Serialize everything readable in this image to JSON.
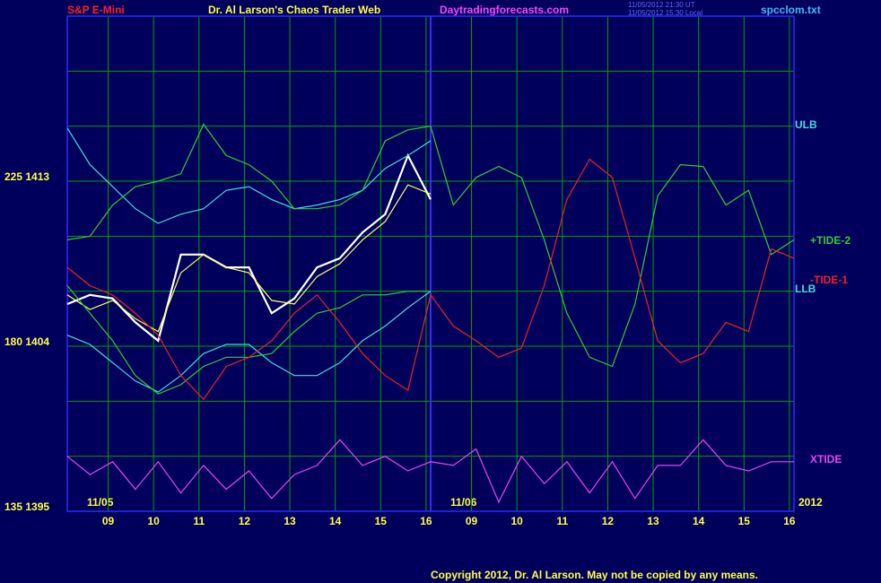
{
  "chart_data": {
    "type": "line",
    "instrument": "S&P E-Mini",
    "title": "Dr. Al Larson's Chaos Trader Web",
    "website": "Daytradingforecasts.com",
    "timestamps": [
      "11/05/2012 21:30 UT",
      "11/05/2012 15:30 Local"
    ],
    "file": "spcclom.txt",
    "dates": [
      "11/05",
      "11/06"
    ],
    "year": "2012",
    "copyright": "Copyright 2012, Dr. Al Larson. May not be copied by any means.",
    "xlim": [
      0,
      16
    ],
    "ylim": [
      1395,
      1422
    ],
    "xticks": [
      {
        "value": 0.9,
        "label": "09"
      },
      {
        "value": 1.9,
        "label": "10"
      },
      {
        "value": 2.9,
        "label": "11"
      },
      {
        "value": 3.9,
        "label": "12"
      },
      {
        "value": 4.9,
        "label": "13"
      },
      {
        "value": 5.9,
        "label": "14"
      },
      {
        "value": 6.9,
        "label": "15"
      },
      {
        "value": 7.9,
        "label": "16"
      },
      {
        "value": 8.9,
        "label": "09"
      },
      {
        "value": 9.9,
        "label": "10"
      },
      {
        "value": 10.9,
        "label": "11"
      },
      {
        "value": 11.9,
        "label": "12"
      },
      {
        "value": 12.9,
        "label": "13"
      },
      {
        "value": 13.9,
        "label": "14"
      },
      {
        "value": 14.9,
        "label": "15"
      },
      {
        "value": 15.9,
        "label": "16"
      }
    ],
    "yticks": [
      {
        "value": 1395,
        "label": "135 1395"
      },
      {
        "value": 1404,
        "label": "180 1404"
      },
      {
        "value": 1413,
        "label": "225 1413"
      }
    ],
    "ygrid": [
      1398,
      1401,
      1407,
      1410,
      1416,
      1419,
      1422
    ],
    "grid": true,
    "grid_color": "#00a000",
    "day_divider": 8,
    "x": [
      0,
      0.5,
      1,
      1.5,
      2,
      2.5,
      3,
      3.5,
      4,
      4.5,
      5,
      5.5,
      6,
      6.5,
      7,
      7.5,
      8,
      8.5,
      9,
      9.5,
      10,
      10.5,
      11,
      11.5,
      12,
      12.5,
      13,
      13.5,
      14,
      14.5,
      15,
      15.5,
      16
    ],
    "series": [
      {
        "color": "#ffffff",
        "values": [
          1406.3,
          1406.8,
          1406.6,
          1405.3,
          1404.3,
          1409.0,
          1409.0,
          1408.3,
          1408.3,
          1405.8,
          1406.6,
          1408.3,
          1408.8,
          1410.2,
          1411.2,
          1414.4,
          1412.0,
          null,
          null,
          null,
          null,
          null,
          null,
          null,
          null,
          null,
          null,
          null,
          null,
          null,
          null,
          null,
          null
        ]
      },
      {
        "color": "#ffff66",
        "values": [
          1406.8,
          1406.0,
          1406.5,
          1405.5,
          1404.8,
          1408.0,
          1409.0,
          1408.3,
          1408.0,
          1406.5,
          1406.3,
          1407.8,
          1408.5,
          1409.8,
          1410.8,
          1412.8,
          1412.3,
          null,
          null,
          null,
          null,
          null,
          null,
          null,
          null,
          null,
          null,
          null,
          null,
          null,
          null,
          null,
          null
        ]
      },
      {
        "name": "ULB",
        "color": "#44dddd",
        "values": [
          1415.9,
          1413.9,
          1412.7,
          1411.5,
          1410.7,
          1411.2,
          1411.5,
          1412.5,
          1412.7,
          1412.0,
          1411.5,
          1411.7,
          1412.0,
          1412.5,
          1413.7,
          1414.4,
          1415.2,
          null,
          null,
          null,
          null,
          null,
          null,
          null,
          null,
          null,
          null,
          null,
          null,
          null,
          null,
          null,
          null
        ]
      },
      {
        "name": "LLB",
        "color": "#44dddd",
        "values": [
          1404.6,
          1404.1,
          1403.1,
          1402.1,
          1401.5,
          1402.4,
          1403.6,
          1404.1,
          1404.1,
          1403.1,
          1402.4,
          1402.4,
          1403.1,
          1404.3,
          1405.1,
          1406.1,
          1407.0,
          null,
          null,
          null,
          null,
          null,
          null,
          null,
          null,
          null,
          null,
          null,
          null,
          null,
          null,
          null,
          null
        ]
      },
      {
        "name": "+TIDE-2",
        "color": "#33cc33",
        "values": [
          1409.8,
          1410.0,
          1411.7,
          1412.7,
          1413.0,
          1413.4,
          1416.1,
          1414.4,
          1413.9,
          1413.0,
          1411.5,
          1411.5,
          1411.7,
          1412.5,
          1415.2,
          1415.8,
          1416.0,
          1411.7,
          1413.2,
          1413.8,
          1413.2,
          1409.8,
          1405.8,
          1403.4,
          1402.9,
          1406.3,
          1412.2,
          1413.9,
          1413.8,
          1411.7,
          1412.5,
          1409.0,
          1409.8
        ]
      },
      {
        "color": "#33cc33",
        "values": [
          1407.3,
          1405.8,
          1404.3,
          1402.4,
          1401.4,
          1401.9,
          1402.9,
          1403.4,
          1403.4,
          1403.6,
          1404.8,
          1405.8,
          1406.1,
          1406.8,
          1406.8,
          1407.0,
          1407.0,
          null,
          null,
          null,
          null,
          null,
          null,
          null,
          null,
          null,
          null,
          null,
          null,
          null,
          null,
          null,
          null
        ]
      },
      {
        "name": "-TIDE-1",
        "color": "#ee2222",
        "values": [
          1408.3,
          1407.3,
          1406.8,
          1405.8,
          1404.6,
          1402.4,
          1401.1,
          1402.9,
          1403.4,
          1404.3,
          1405.8,
          1406.8,
          1405.3,
          1403.6,
          1402.4,
          1401.6,
          1406.8,
          1405.1,
          1404.3,
          1403.4,
          1403.9,
          1407.3,
          1412.0,
          1414.2,
          1413.2,
          1408.8,
          1404.3,
          1403.1,
          1403.6,
          1405.3,
          1404.8,
          1409.3,
          1408.8
        ]
      },
      {
        "name": "XTIDE",
        "color": "#ee44ee",
        "values": [
          1398.0,
          1397.0,
          1397.7,
          1396.2,
          1397.7,
          1396.0,
          1397.5,
          1396.2,
          1397.2,
          1395.7,
          1397.0,
          1397.5,
          1398.9,
          1397.5,
          1398.0,
          1397.2,
          1397.7,
          1397.5,
          1398.4,
          1395.5,
          1398.0,
          1396.5,
          1397.7,
          1396.0,
          1397.7,
          1395.7,
          1397.5,
          1397.5,
          1398.9,
          1397.5,
          1397.2,
          1397.7,
          1397.7
        ]
      }
    ]
  }
}
